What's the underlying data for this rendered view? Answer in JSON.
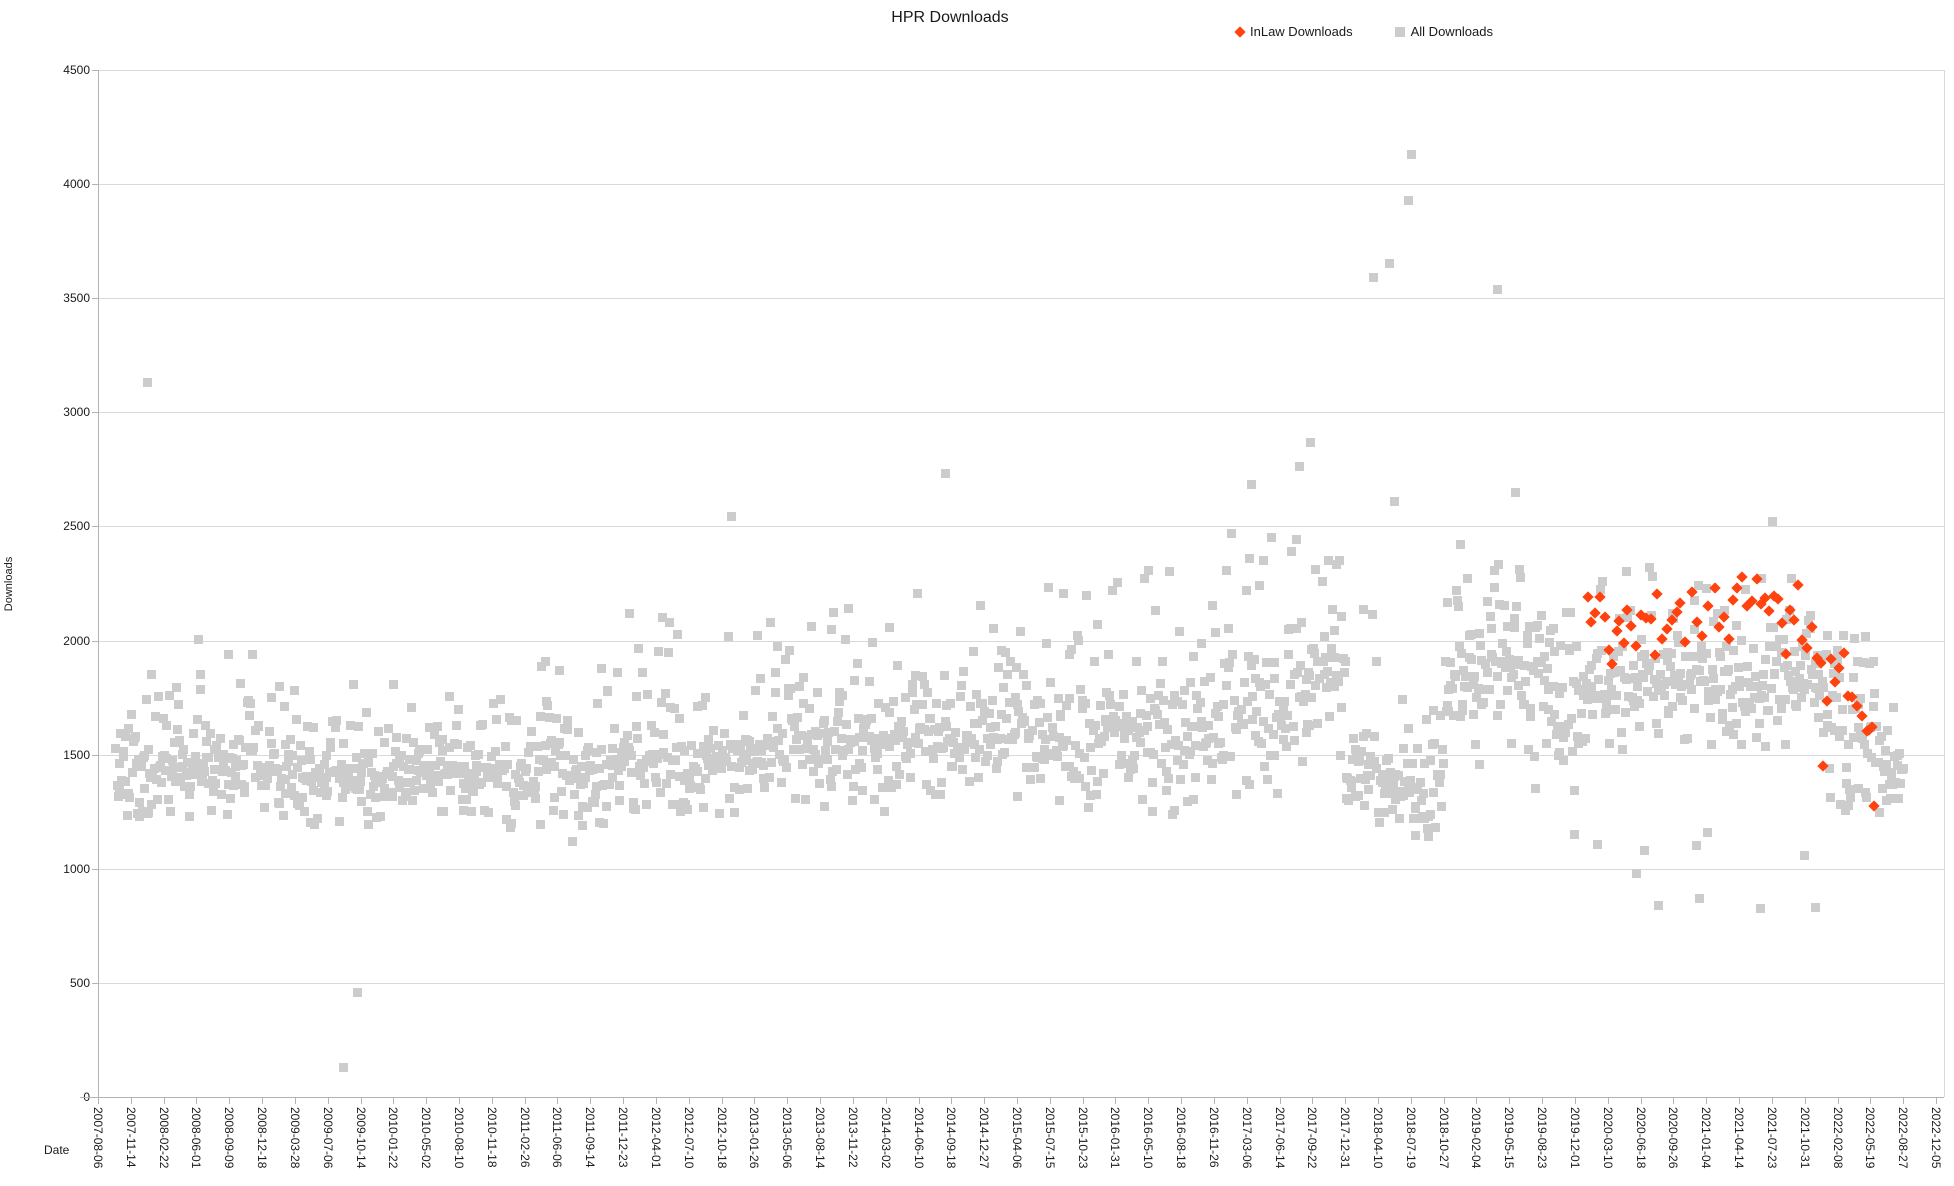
{
  "chart_data": {
    "type": "scatter",
    "title": "HPR Downloads",
    "xlabel": "Date",
    "ylabel": "Downloads",
    "legend_position": "top-right",
    "grid": "horizontal-only",
    "background": "#ffffff",
    "y_axis": {
      "title": "Downloads",
      "min": 0,
      "max": 4500,
      "tick_step": 500,
      "tick_labels": [
        "0",
        "500",
        "1000",
        "1500",
        "2000",
        "2500",
        "3000",
        "3500",
        "4000",
        "4500"
      ]
    },
    "x_axis": {
      "title": "Date",
      "start_date": "2007-08-06",
      "tick_interval_days": 100,
      "max_day": 5640,
      "tick_labels": [
        "2007-08-06",
        "2007-11-14",
        "2008-02-22",
        "2008-06-01",
        "2008-09-09",
        "2008-12-18",
        "2009-03-28",
        "2009-07-06",
        "2009-10-14",
        "2010-01-22",
        "2010-05-02",
        "2010-08-10",
        "2010-11-18",
        "2011-02-26",
        "2011-06-06",
        "2011-09-14",
        "2011-12-23",
        "2012-04-01",
        "2012-07-10",
        "2012-10-18",
        "2013-01-26",
        "2013-05-06",
        "2013-08-14",
        "2013-11-22",
        "2014-03-02",
        "2014-06-10",
        "2014-09-18",
        "2014-12-27",
        "2015-04-06",
        "2015-07-15",
        "2015-10-23",
        "2016-01-31",
        "2016-05-10",
        "2016-08-18",
        "2016-11-26",
        "2017-03-06",
        "2017-06-14",
        "2017-09-22",
        "2017-12-31",
        "2018-04-10",
        "2018-07-19",
        "2018-10-27",
        "2019-02-04",
        "2019-05-15",
        "2019-08-23",
        "2019-12-01",
        "2020-03-10",
        "2020-06-18",
        "2020-09-26",
        "2021-01-04",
        "2021-04-14",
        "2021-07-23",
        "2021-10-31",
        "2022-02-08",
        "2022-05-19",
        "2022-08-27",
        "2022-12-05"
      ]
    },
    "series": [
      {
        "name": "InLaw Downloads",
        "color": "#ff420e",
        "marker": "diamond",
        "points": [
          [
            4540,
            2190
          ],
          [
            4548,
            2082
          ],
          [
            4562,
            2120
          ],
          [
            4577,
            2191
          ],
          [
            4592,
            2102
          ],
          [
            4605,
            1958
          ],
          [
            4613,
            1899
          ],
          [
            4628,
            2040
          ],
          [
            4635,
            2084
          ],
          [
            4650,
            1990
          ],
          [
            4659,
            2136
          ],
          [
            4672,
            2065
          ],
          [
            4685,
            1978
          ],
          [
            4700,
            2110
          ],
          [
            4716,
            2098
          ],
          [
            4732,
            2095
          ],
          [
            4745,
            1938
          ],
          [
            4750,
            2204
          ],
          [
            4765,
            2007
          ],
          [
            4780,
            2052
          ],
          [
            4796,
            2090
          ],
          [
            4810,
            2125
          ],
          [
            4820,
            2163
          ],
          [
            4835,
            1995
          ],
          [
            4857,
            2212
          ],
          [
            4872,
            2080
          ],
          [
            4888,
            2018
          ],
          [
            4905,
            2150
          ],
          [
            4926,
            2232
          ],
          [
            4940,
            2060
          ],
          [
            4955,
            2105
          ],
          [
            4970,
            2005
          ],
          [
            4981,
            2177
          ],
          [
            4995,
            2230
          ],
          [
            5010,
            2280
          ],
          [
            5025,
            2150
          ],
          [
            5040,
            2175
          ],
          [
            5055,
            2270
          ],
          [
            5068,
            2160
          ],
          [
            5080,
            2185
          ],
          [
            5092,
            2130
          ],
          [
            5105,
            2195
          ],
          [
            5118,
            2180
          ],
          [
            5130,
            2075
          ],
          [
            5142,
            1940
          ],
          [
            5155,
            2134
          ],
          [
            5168,
            2090
          ],
          [
            5180,
            2244
          ],
          [
            5192,
            2003
          ],
          [
            5207,
            1968
          ],
          [
            5222,
            2061
          ],
          [
            5237,
            1925
          ],
          [
            5250,
            1902
          ],
          [
            5256,
            1452
          ],
          [
            5268,
            1737
          ],
          [
            5280,
            1921
          ],
          [
            5292,
            1820
          ],
          [
            5305,
            1880
          ],
          [
            5320,
            1947
          ],
          [
            5332,
            1755
          ],
          [
            5344,
            1754
          ],
          [
            5359,
            1715
          ],
          [
            5374,
            1671
          ],
          [
            5390,
            1605
          ],
          [
            5395,
            1608
          ],
          [
            5404,
            1620
          ],
          [
            5412,
            1277
          ]
        ]
      },
      {
        "name": "All Downloads",
        "color": "#cccccc",
        "marker": "square",
        "cloud_segments": [
          {
            "d0": 55,
            "d1": 260,
            "n": 70,
            "core": [
              1250,
              1580
            ],
            "upper": [
              1580,
              1860
            ],
            "lower": [
              1215,
              1255
            ]
          },
          {
            "d0": 260,
            "d1": 500,
            "n": 82,
            "core": [
              1250,
              1620
            ],
            "upper": [
              1620,
              1990
            ],
            "lower": [
              1205,
              1255
            ]
          },
          {
            "d0": 500,
            "d1": 900,
            "n": 135,
            "core": [
              1230,
              1600
            ],
            "upper": [
              1600,
              1810
            ],
            "lower": [
              1185,
              1235
            ]
          },
          {
            "d0": 900,
            "d1": 1250,
            "n": 118,
            "core": [
              1250,
              1620
            ],
            "upper": [
              1620,
              1850
            ],
            "lower": [
              1205,
              1255
            ]
          },
          {
            "d0": 1250,
            "d1": 1600,
            "n": 118,
            "core": [
              1230,
              1650
            ],
            "upper": [
              1650,
              1910
            ],
            "lower": [
              1115,
              1235
            ]
          },
          {
            "d0": 1600,
            "d1": 1970,
            "n": 124,
            "core": [
              1280,
              1700
            ],
            "upper": [
              1700,
              2130
            ],
            "lower": [
              1215,
              1285
            ]
          },
          {
            "d0": 1970,
            "d1": 2340,
            "n": 124,
            "core": [
              1300,
              1750
            ],
            "upper": [
              1750,
              2180
            ],
            "lower": [
              1235,
              1305
            ]
          },
          {
            "d0": 2340,
            "d1": 2700,
            "n": 121,
            "core": [
              1300,
              1800
            ],
            "upper": [
              1800,
              2230
            ],
            "lower": [
              1235,
              1305
            ]
          },
          {
            "d0": 2700,
            "d1": 3070,
            "n": 124,
            "core": [
              1320,
              1850
            ],
            "upper": [
              1850,
              2280
            ],
            "lower": [
              1255,
              1325
            ]
          },
          {
            "d0": 3070,
            "d1": 3440,
            "n": 124,
            "core": [
              1300,
              1900
            ],
            "upper": [
              1900,
              2330
            ],
            "lower": [
              1235,
              1305
            ]
          },
          {
            "d0": 3440,
            "d1": 3700,
            "n": 88,
            "core": [
              1400,
              2050
            ],
            "upper": [
              2050,
              2520
            ],
            "lower": [
              1285,
              1405
            ]
          },
          {
            "d0": 3700,
            "d1": 3800,
            "n": 34,
            "core": [
              1500,
              2260
            ],
            "upper": [
              2260,
              2500
            ],
            "lower": [
              1310,
              1500
            ]
          },
          {
            "d0": 3800,
            "d1": 3900,
            "n": 34,
            "core": [
              1250,
              1620
            ],
            "upper": [
              1700,
              2350
            ],
            "lower": [
              1205,
              1255
            ]
          },
          {
            "d0": 3900,
            "d1": 4100,
            "n": 68,
            "core": [
              1180,
              1520
            ],
            "upper": [
              1520,
              1800
            ],
            "lower": [
              1135,
              1185
            ]
          },
          {
            "d0": 4100,
            "d1": 4250,
            "n": 51,
            "core": [
              1550,
              2150
            ],
            "upper": [
              2150,
              2360
            ],
            "lower": [
              1360,
              1550
            ]
          },
          {
            "d0": 4250,
            "d1": 4420,
            "n": 58,
            "core": [
              1550,
              2150
            ],
            "upper": [
              2150,
              2430
            ],
            "lower": [
              1310,
              1550
            ]
          },
          {
            "d0": 4420,
            "d1": 4540,
            "n": 41,
            "core": [
              1500,
              1950
            ],
            "upper": [
              1950,
              2160
            ],
            "lower": [
              1260,
              1500
            ]
          },
          {
            "d0": 4540,
            "d1": 4900,
            "n": 122,
            "core": [
              1600,
              2050
            ],
            "upper": [
              2050,
              2360
            ],
            "lower": [
              1310,
              1600
            ]
          },
          {
            "d0": 4900,
            "d1": 5260,
            "n": 122,
            "core": [
              1550,
              2050
            ],
            "upper": [
              2050,
              2300
            ],
            "lower": [
              1260,
              1550
            ]
          },
          {
            "d0": 5260,
            "d1": 5420,
            "n": 54,
            "core": [
              1350,
              1900
            ],
            "upper": [
              1900,
              2060
            ],
            "lower": [
              1235,
              1350
            ]
          },
          {
            "d0": 5420,
            "d1": 5505,
            "n": 28,
            "core": [
              1230,
              1560
            ],
            "upper": [
              1560,
              1710
            ],
            "lower": [
              1200,
              1235
            ]
          }
        ],
        "outliers": [
          [
            150,
            3130
          ],
          [
            305,
            2003
          ],
          [
            399,
            1941
          ],
          [
            747,
            130
          ],
          [
            792,
            460
          ],
          [
            1929,
            2542
          ],
          [
            2581,
            2730
          ],
          [
            3513,
            2685
          ],
          [
            3662,
            2764
          ],
          [
            3693,
            2868
          ],
          [
            3885,
            3590
          ],
          [
            3934,
            3650
          ],
          [
            3949,
            2610
          ],
          [
            3994,
            3930
          ],
          [
            4001,
            4128
          ],
          [
            4150,
            2420
          ],
          [
            4263,
            3540
          ],
          [
            4318,
            2650
          ],
          [
            4498,
            1150
          ],
          [
            4568,
            1106
          ],
          [
            4689,
            980
          ],
          [
            4711,
            1080
          ],
          [
            4753,
            840
          ],
          [
            4869,
            1102
          ],
          [
            4878,
            870
          ],
          [
            4903,
            1159
          ],
          [
            5064,
            826
          ],
          [
            5101,
            2520
          ],
          [
            5200,
            1060
          ],
          [
            5232,
            830
          ]
        ]
      }
    ]
  }
}
